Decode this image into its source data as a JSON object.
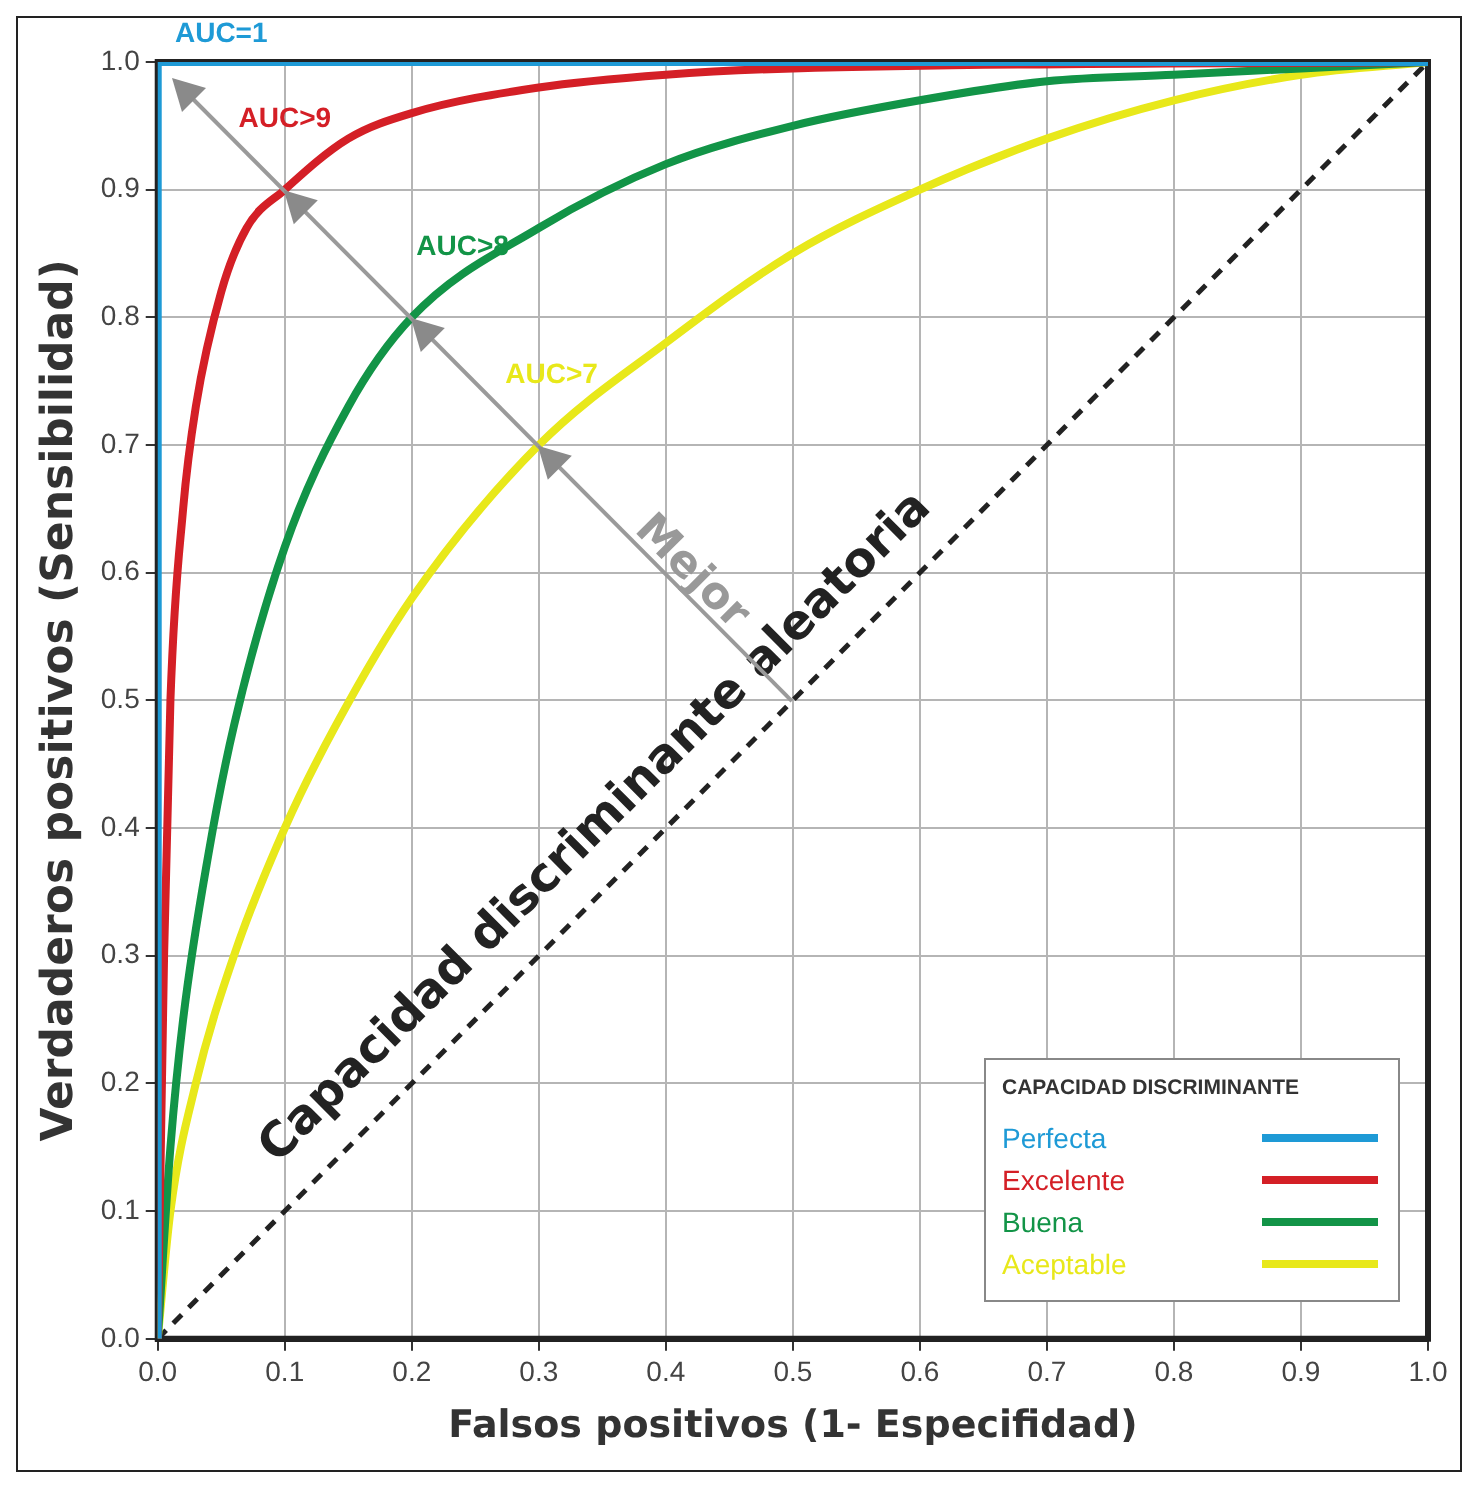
{
  "chart_data": {
    "type": "line",
    "xlabel": "Falsos positivos (1- Especifidad)",
    "ylabel": "Verdaderos positivos (Sensibilidad)",
    "legend_title": "CAPACIDAD DISCRIMINANTE",
    "legend": "bottom right",
    "grid": true,
    "marker": "none",
    "line_style": "solid",
    "xlim": [
      0,
      1
    ],
    "ylim": [
      0,
      1
    ],
    "xticks": [
      {
        "value": 0,
        "label": "0.0"
      },
      0.1,
      0.2,
      0.3,
      0.4,
      0.5,
      0.6,
      0.7,
      0.8,
      0.9,
      {
        "value": 1,
        "label": "1.0"
      }
    ],
    "yticks": [
      {
        "value": 0,
        "label": "0.0"
      },
      0.1,
      0.2,
      0.3,
      0.4,
      0.5,
      0.6,
      0.7,
      0.8,
      0.9,
      {
        "value": 1,
        "label": "1.0"
      }
    ],
    "series": [
      {
        "name": "Perfecta",
        "color": "#1e9ad6",
        "x": [
          0,
          0,
          1
        ],
        "values": [
          0,
          1,
          1
        ]
      },
      {
        "name": "Excelente",
        "color": "#d41f26",
        "x": [
          0,
          0.005,
          0.01,
          0.02,
          0.03,
          0.05,
          0.07,
          0.1,
          0.15,
          0.2,
          0.3,
          0.4,
          0.5,
          0.7,
          1
        ],
        "values": [
          0,
          0.3,
          0.5,
          0.65,
          0.73,
          0.82,
          0.87,
          0.9,
          0.94,
          0.96,
          0.98,
          0.99,
          0.995,
          null,
          1
        ]
      },
      {
        "name": "Buena",
        "color": "#129447",
        "x": [
          0,
          0.01,
          0.02,
          0.04,
          0.06,
          0.1,
          0.15,
          0.2,
          0.3,
          0.4,
          0.5,
          0.6,
          0.7,
          0.8,
          1
        ],
        "values": [
          0,
          0.15,
          0.25,
          0.38,
          0.48,
          0.62,
          0.73,
          0.8,
          0.87,
          0.92,
          0.95,
          0.97,
          0.985,
          0.99,
          1
        ]
      },
      {
        "name": "Aceptable",
        "color": "#e8e81a",
        "x": [
          0,
          0.01,
          0.03,
          0.06,
          0.1,
          0.14,
          0.2,
          0.3,
          0.4,
          0.5,
          0.6,
          0.7,
          0.8,
          0.9,
          1
        ],
        "values": [
          0,
          0.1,
          0.2,
          0.3,
          0.4,
          0.48,
          0.58,
          0.7,
          0.78,
          0.85,
          0.9,
          0.94,
          0.97,
          0.99,
          1
        ]
      },
      {
        "color": "#222222",
        "line_style": "dashed",
        "x": [
          0,
          1
        ],
        "values": [
          0,
          1
        ]
      }
    ],
    "annotations": [
      "AUC=1",
      "AUC>9",
      "AUC>8",
      "AUC>7",
      "Mejor",
      "Capacidad discriminante aleatoria"
    ]
  }
}
